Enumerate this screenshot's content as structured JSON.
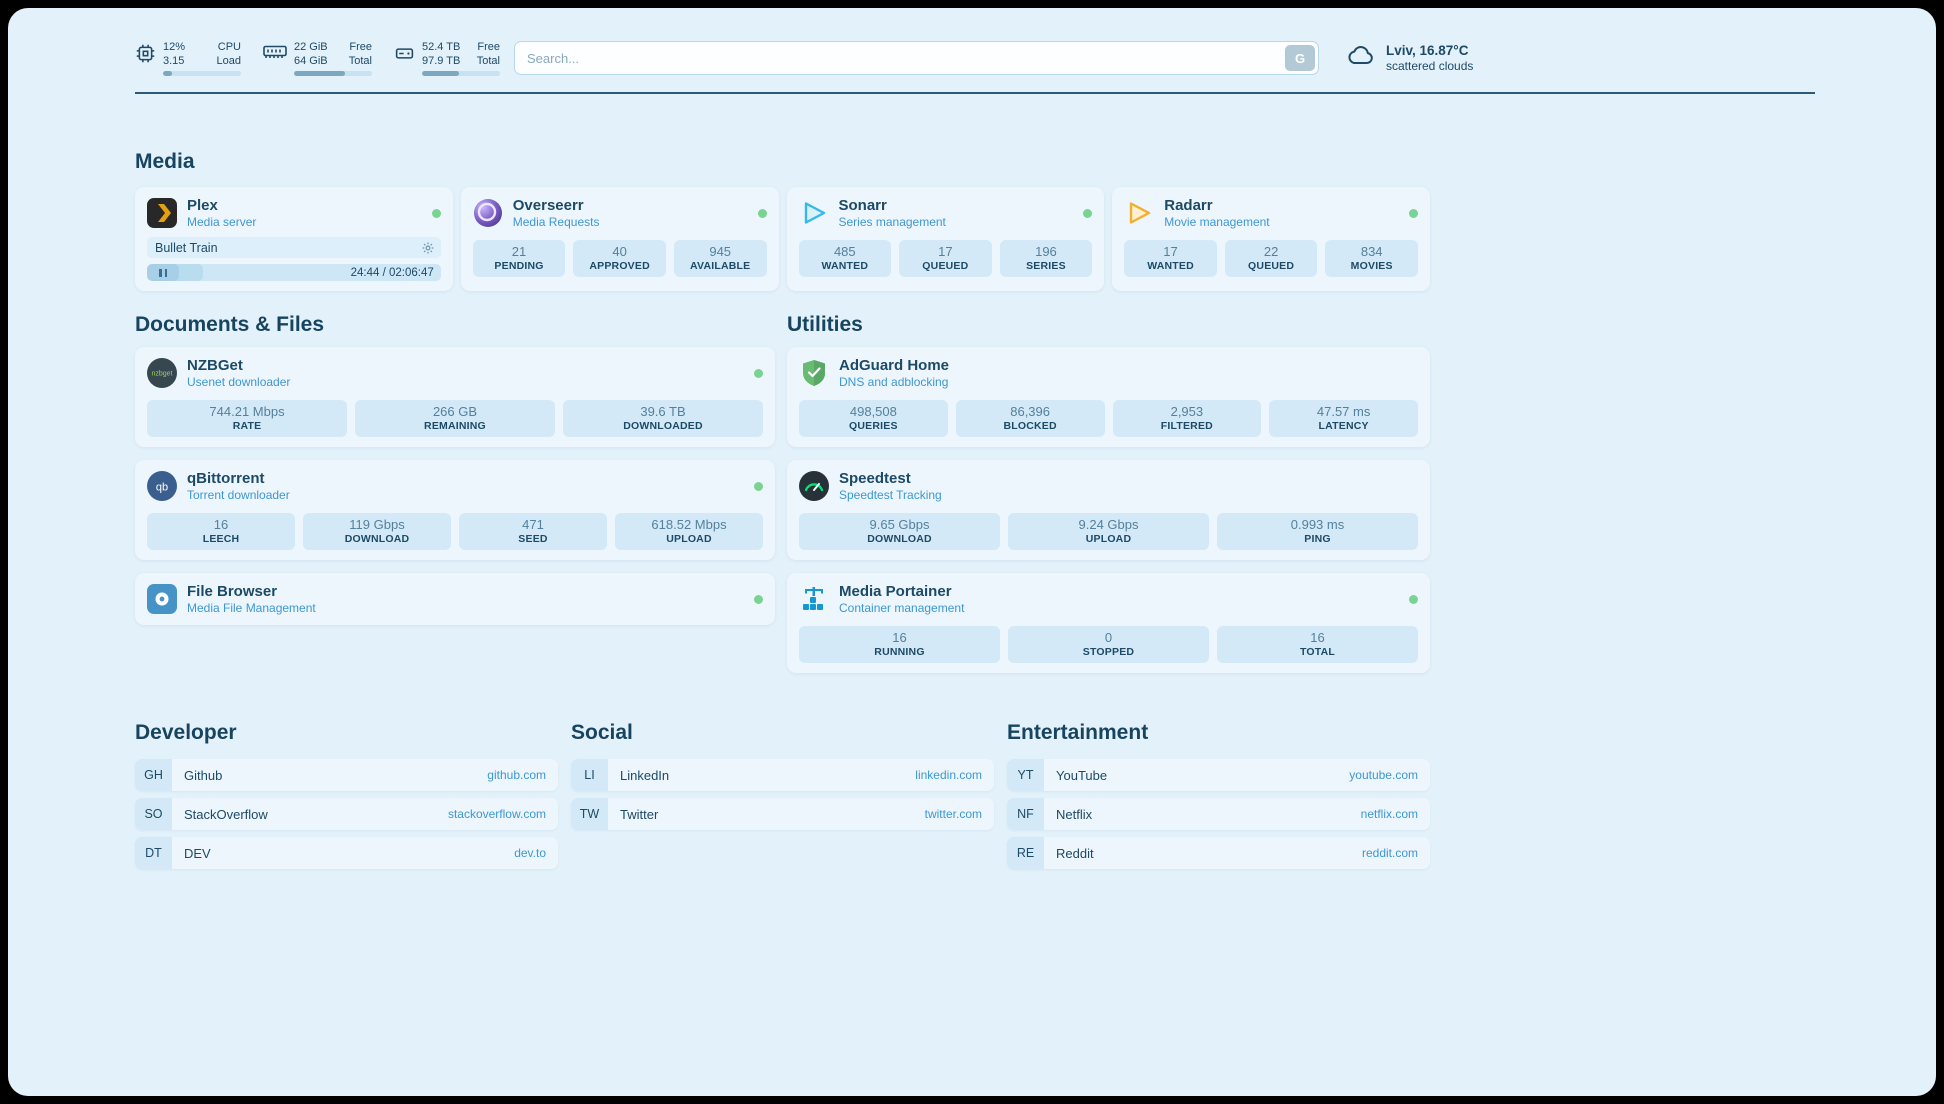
{
  "colors": {
    "page_bg": "#e3f1fa",
    "card_bg": "#edf6fc",
    "chip_bg": "#d3e9f7",
    "heading": "#17445f",
    "text_dark": "#1d4a66",
    "value_text": "#54809b",
    "accent": "#3e97d4",
    "status_ok": "#79d393",
    "divider": "#2d5c7b",
    "bar_fill": "#7ba7bf",
    "bar_track": "#c6e2f3",
    "search_btn": "#b3c9d6"
  },
  "topbar": {
    "monitors": [
      {
        "value": "12%",
        "sub": "3.15",
        "label_top": "CPU",
        "label_bottom": "Load",
        "percent": 12
      },
      {
        "value": "22 GiB",
        "sub": "64 GiB",
        "label_top": "Free",
        "label_bottom": "Total",
        "percent": 66
      },
      {
        "value": "52.4 TB",
        "sub": "97.9 TB",
        "label_top": "Free",
        "label_bottom": "Total",
        "percent": 47
      }
    ],
    "search": {
      "placeholder": "Search...",
      "button_label": "G"
    },
    "weather": {
      "location": "Lviv, 16.87°C",
      "condition": "scattered clouds"
    }
  },
  "sections": {
    "media": "Media",
    "documents": "Documents & Files",
    "utilities": "Utilities"
  },
  "services": {
    "plex": {
      "title": "Plex",
      "subtitle": "Media server",
      "player": {
        "title": "Bullet Train",
        "time": "24:44 / 02:06:47",
        "progress": 19
      }
    },
    "overseerr": {
      "title": "Overseerr",
      "subtitle": "Media Requests",
      "stats": [
        {
          "value": "21",
          "label": "PENDING"
        },
        {
          "value": "40",
          "label": "APPROVED"
        },
        {
          "value": "945",
          "label": "AVAILABLE"
        }
      ]
    },
    "sonarr": {
      "title": "Sonarr",
      "subtitle": "Series management",
      "stats": [
        {
          "value": "485",
          "label": "WANTED"
        },
        {
          "value": "17",
          "label": "QUEUED"
        },
        {
          "value": "196",
          "label": "SERIES"
        }
      ]
    },
    "radarr": {
      "title": "Radarr",
      "subtitle": "Movie management",
      "stats": [
        {
          "value": "17",
          "label": "WANTED"
        },
        {
          "value": "22",
          "label": "QUEUED"
        },
        {
          "value": "834",
          "label": "MOVIES"
        }
      ]
    },
    "nzbget": {
      "title": "NZBGet",
      "subtitle": "Usenet downloader",
      "stats": [
        {
          "value": "744.21 Mbps",
          "label": "RATE"
        },
        {
          "value": "266 GB",
          "label": "REMAINING"
        },
        {
          "value": "39.6 TB",
          "label": "DOWNLOADED"
        }
      ]
    },
    "qbittorrent": {
      "title": "qBittorrent",
      "subtitle": "Torrent downloader",
      "stats": [
        {
          "value": "16",
          "label": "LEECH"
        },
        {
          "value": "119 Gbps",
          "label": "DOWNLOAD"
        },
        {
          "value": "471",
          "label": "SEED"
        },
        {
          "value": "618.52 Mbps",
          "label": "UPLOAD"
        }
      ]
    },
    "filebrowser": {
      "title": "File Browser",
      "subtitle": "Media File Management"
    },
    "adguard": {
      "title": "AdGuard Home",
      "subtitle": "DNS and adblocking",
      "stats": [
        {
          "value": "498,508",
          "label": "QUERIES"
        },
        {
          "value": "86,396",
          "label": "BLOCKED"
        },
        {
          "value": "2,953",
          "label": "FILTERED"
        },
        {
          "value": "47.57 ms",
          "label": "LATENCY"
        }
      ]
    },
    "speedtest": {
      "title": "Speedtest",
      "subtitle": "Speedtest Tracking",
      "stats": [
        {
          "value": "9.65 Gbps",
          "label": "DOWNLOAD"
        },
        {
          "value": "9.24 Gbps",
          "label": "UPLOAD"
        },
        {
          "value": "0.993 ms",
          "label": "PING"
        }
      ]
    },
    "portainer": {
      "title": "Media Portainer",
      "subtitle": "Container management",
      "stats": [
        {
          "value": "16",
          "label": "RUNNING"
        },
        {
          "value": "0",
          "label": "STOPPED"
        },
        {
          "value": "16",
          "label": "TOTAL"
        }
      ]
    }
  },
  "bookmarks": {
    "developer": {
      "title": "Developer",
      "items": [
        {
          "abbr": "GH",
          "name": "Github",
          "href": "github.com"
        },
        {
          "abbr": "SO",
          "name": "StackOverflow",
          "href": "stackoverflow.com"
        },
        {
          "abbr": "DT",
          "name": "DEV",
          "href": "dev.to"
        }
      ]
    },
    "social": {
      "title": "Social",
      "items": [
        {
          "abbr": "LI",
          "name": "LinkedIn",
          "href": "linkedin.com"
        },
        {
          "abbr": "TW",
          "name": "Twitter",
          "href": "twitter.com"
        }
      ]
    },
    "entertainment": {
      "title": "Entertainment",
      "items": [
        {
          "abbr": "YT",
          "name": "YouTube",
          "href": "youtube.com"
        },
        {
          "abbr": "NF",
          "name": "Netflix",
          "href": "netflix.com"
        },
        {
          "abbr": "RE",
          "name": "Reddit",
          "href": "reddit.com"
        }
      ]
    }
  }
}
